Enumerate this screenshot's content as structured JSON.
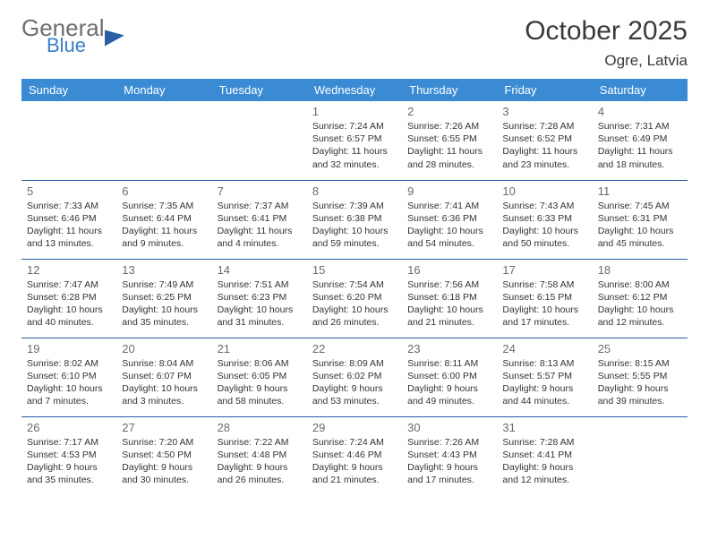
{
  "logo": {
    "line1": "General",
    "line2": "Blue"
  },
  "title": {
    "month": "October 2025",
    "location": "Ogre, Latvia"
  },
  "colors": {
    "header_bg": "#3b8bd4",
    "header_text": "#ffffff",
    "rule": "#2a5fa3",
    "daynum": "#6b6b6b",
    "body_text": "#333333",
    "logo_gray": "#6d6e71",
    "logo_blue": "#3b7fc4"
  },
  "day_labels": [
    "Sunday",
    "Monday",
    "Tuesday",
    "Wednesday",
    "Thursday",
    "Friday",
    "Saturday"
  ],
  "weeks": [
    [
      null,
      null,
      null,
      {
        "n": "1",
        "sr": "7:24 AM",
        "ss": "6:57 PM",
        "dl": "11 hours and 32 minutes."
      },
      {
        "n": "2",
        "sr": "7:26 AM",
        "ss": "6:55 PM",
        "dl": "11 hours and 28 minutes."
      },
      {
        "n": "3",
        "sr": "7:28 AM",
        "ss": "6:52 PM",
        "dl": "11 hours and 23 minutes."
      },
      {
        "n": "4",
        "sr": "7:31 AM",
        "ss": "6:49 PM",
        "dl": "11 hours and 18 minutes."
      }
    ],
    [
      {
        "n": "5",
        "sr": "7:33 AM",
        "ss": "6:46 PM",
        "dl": "11 hours and 13 minutes."
      },
      {
        "n": "6",
        "sr": "7:35 AM",
        "ss": "6:44 PM",
        "dl": "11 hours and 9 minutes."
      },
      {
        "n": "7",
        "sr": "7:37 AM",
        "ss": "6:41 PM",
        "dl": "11 hours and 4 minutes."
      },
      {
        "n": "8",
        "sr": "7:39 AM",
        "ss": "6:38 PM",
        "dl": "10 hours and 59 minutes."
      },
      {
        "n": "9",
        "sr": "7:41 AM",
        "ss": "6:36 PM",
        "dl": "10 hours and 54 minutes."
      },
      {
        "n": "10",
        "sr": "7:43 AM",
        "ss": "6:33 PM",
        "dl": "10 hours and 50 minutes."
      },
      {
        "n": "11",
        "sr": "7:45 AM",
        "ss": "6:31 PM",
        "dl": "10 hours and 45 minutes."
      }
    ],
    [
      {
        "n": "12",
        "sr": "7:47 AM",
        "ss": "6:28 PM",
        "dl": "10 hours and 40 minutes."
      },
      {
        "n": "13",
        "sr": "7:49 AM",
        "ss": "6:25 PM",
        "dl": "10 hours and 35 minutes."
      },
      {
        "n": "14",
        "sr": "7:51 AM",
        "ss": "6:23 PM",
        "dl": "10 hours and 31 minutes."
      },
      {
        "n": "15",
        "sr": "7:54 AM",
        "ss": "6:20 PM",
        "dl": "10 hours and 26 minutes."
      },
      {
        "n": "16",
        "sr": "7:56 AM",
        "ss": "6:18 PM",
        "dl": "10 hours and 21 minutes."
      },
      {
        "n": "17",
        "sr": "7:58 AM",
        "ss": "6:15 PM",
        "dl": "10 hours and 17 minutes."
      },
      {
        "n": "18",
        "sr": "8:00 AM",
        "ss": "6:12 PM",
        "dl": "10 hours and 12 minutes."
      }
    ],
    [
      {
        "n": "19",
        "sr": "8:02 AM",
        "ss": "6:10 PM",
        "dl": "10 hours and 7 minutes."
      },
      {
        "n": "20",
        "sr": "8:04 AM",
        "ss": "6:07 PM",
        "dl": "10 hours and 3 minutes."
      },
      {
        "n": "21",
        "sr": "8:06 AM",
        "ss": "6:05 PM",
        "dl": "9 hours and 58 minutes."
      },
      {
        "n": "22",
        "sr": "8:09 AM",
        "ss": "6:02 PM",
        "dl": "9 hours and 53 minutes."
      },
      {
        "n": "23",
        "sr": "8:11 AM",
        "ss": "6:00 PM",
        "dl": "9 hours and 49 minutes."
      },
      {
        "n": "24",
        "sr": "8:13 AM",
        "ss": "5:57 PM",
        "dl": "9 hours and 44 minutes."
      },
      {
        "n": "25",
        "sr": "8:15 AM",
        "ss": "5:55 PM",
        "dl": "9 hours and 39 minutes."
      }
    ],
    [
      {
        "n": "26",
        "sr": "7:17 AM",
        "ss": "4:53 PM",
        "dl": "9 hours and 35 minutes."
      },
      {
        "n": "27",
        "sr": "7:20 AM",
        "ss": "4:50 PM",
        "dl": "9 hours and 30 minutes."
      },
      {
        "n": "28",
        "sr": "7:22 AM",
        "ss": "4:48 PM",
        "dl": "9 hours and 26 minutes."
      },
      {
        "n": "29",
        "sr": "7:24 AM",
        "ss": "4:46 PM",
        "dl": "9 hours and 21 minutes."
      },
      {
        "n": "30",
        "sr": "7:26 AM",
        "ss": "4:43 PM",
        "dl": "9 hours and 17 minutes."
      },
      {
        "n": "31",
        "sr": "7:28 AM",
        "ss": "4:41 PM",
        "dl": "9 hours and 12 minutes."
      },
      null
    ]
  ],
  "labels": {
    "sunrise": "Sunrise:",
    "sunset": "Sunset:",
    "daylight": "Daylight:"
  }
}
